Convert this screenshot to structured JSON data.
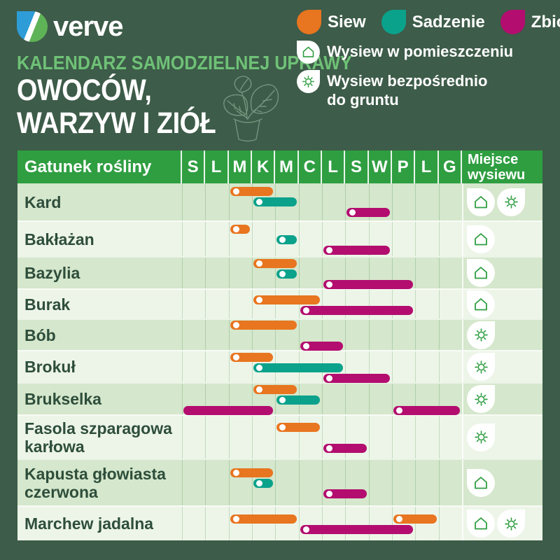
{
  "brand": {
    "name": "verve"
  },
  "header": {
    "eyebrow": "KALENDARZ SAMODZIELNEJ UPRAWY",
    "title_line1": "OWOCÓW,",
    "title_line2": "WARZYW I ZIÓŁ"
  },
  "legend": {
    "items": [
      {
        "key": "siew",
        "label": "Siew",
        "color": "#e8751f"
      },
      {
        "key": "sadzenie",
        "label": "Sadzenie",
        "color": "#0ba28c"
      },
      {
        "key": "zbior",
        "label": "Zbiór",
        "color": "#b30d6f"
      }
    ],
    "indoor_label": "Wysiew w pomieszczeniu",
    "direct_line1": "Wysiew bezpośrednio",
    "direct_line2": "do gruntu"
  },
  "table": {
    "species_header": "Gatunek rośliny",
    "place_line1": "Miejsce",
    "place_line2": "wysiewu"
  },
  "chart_data": {
    "type": "bar",
    "subtype": "gantt-calendar",
    "months": [
      "S",
      "L",
      "M",
      "K",
      "M",
      "C",
      "L",
      "S",
      "W",
      "P",
      "L",
      "G"
    ],
    "colors": {
      "siew": "#e8751f",
      "sadzenie": "#0ba28c",
      "zbior": "#b30d6f"
    },
    "series_legend": [
      "Siew",
      "Sadzenie",
      "Zbiór"
    ],
    "rows": [
      {
        "species": "Kard",
        "h": 53,
        "lanes": 3,
        "place": [
          "indoor",
          "direct"
        ],
        "bars": [
          {
            "type": "siew",
            "start": 3,
            "end": 4,
            "lane": 0,
            "dot": true
          },
          {
            "type": "sadzenie",
            "start": 4,
            "end": 5,
            "lane": 1,
            "dot": true
          },
          {
            "type": "zbior",
            "start": 8,
            "end": 9,
            "lane": 2,
            "dot": true
          }
        ]
      },
      {
        "species": "Bakłażan",
        "h": 51,
        "lanes": 3,
        "place": [
          "indoor"
        ],
        "bars": [
          {
            "type": "siew",
            "start": 3,
            "end": 3,
            "lane": 0,
            "dot": true
          },
          {
            "type": "sadzenie",
            "start": 5,
            "end": 5,
            "lane": 1,
            "dot": true
          },
          {
            "type": "zbior",
            "start": 7,
            "end": 9,
            "lane": 2,
            "dot": true
          }
        ]
      },
      {
        "species": "Bazylia",
        "h": 46,
        "lanes": 3,
        "place": [
          "indoor"
        ],
        "bars": [
          {
            "type": "siew",
            "start": 4,
            "end": 5,
            "lane": 0,
            "dot": true
          },
          {
            "type": "sadzenie",
            "start": 5,
            "end": 5,
            "lane": 1,
            "dot": true
          },
          {
            "type": "zbior",
            "start": 7,
            "end": 10,
            "lane": 2,
            "dot": true
          }
        ]
      },
      {
        "species": "Burak",
        "h": 43,
        "lanes": 2,
        "place": [
          "indoor"
        ],
        "bars": [
          {
            "type": "siew",
            "start": 4,
            "end": 6,
            "lane": 0,
            "dot": true
          },
          {
            "type": "zbior",
            "start": 6,
            "end": 10,
            "lane": 1,
            "dot": true
          }
        ]
      },
      {
        "species": "Bób",
        "h": 45,
        "lanes": 3,
        "place": [
          "direct"
        ],
        "bars": [
          {
            "type": "siew",
            "start": 3,
            "end": 5,
            "lane": 0,
            "dot": true
          },
          {
            "type": "zbior",
            "start": 6,
            "end": 7,
            "lane": 2,
            "dot": true
          }
        ]
      },
      {
        "species": "Brokuł",
        "h": 46,
        "lanes": 3,
        "place": [
          "direct"
        ],
        "bars": [
          {
            "type": "siew",
            "start": 3,
            "end": 4,
            "lane": 0,
            "dot": true
          },
          {
            "type": "sadzenie",
            "start": 4,
            "end": 7,
            "lane": 1,
            "dot": true
          },
          {
            "type": "zbior",
            "start": 7,
            "end": 9,
            "lane": 2,
            "dot": true
          }
        ]
      },
      {
        "species": "Brukselka",
        "h": 46,
        "lanes": 3,
        "place": [
          "direct"
        ],
        "bars": [
          {
            "type": "siew",
            "start": 4,
            "end": 5,
            "lane": 0,
            "dot": true
          },
          {
            "type": "sadzenie",
            "start": 5,
            "end": 6,
            "lane": 1,
            "dot": true
          },
          {
            "type": "zbior",
            "start": 1,
            "end": 4,
            "lane": 2,
            "dot": false
          },
          {
            "type": "zbior",
            "start": 10,
            "end": 12,
            "lane": 2,
            "dot": true
          }
        ]
      },
      {
        "species": "Fasola szparagowa karłowa",
        "h": 63,
        "lanes": 3,
        "place": [
          "direct"
        ],
        "bars": [
          {
            "type": "siew",
            "start": 5,
            "end": 6,
            "lane": 0,
            "dot": true
          },
          {
            "type": "zbior",
            "start": 7,
            "end": 8,
            "lane": 2,
            "dot": true
          }
        ]
      },
      {
        "species": "Kapusta głowiasta czerwona",
        "h": 67,
        "lanes": 3,
        "place": [
          "indoor"
        ],
        "bars": [
          {
            "type": "siew",
            "start": 3,
            "end": 4,
            "lane": 0,
            "dot": true
          },
          {
            "type": "sadzenie",
            "start": 4,
            "end": 4,
            "lane": 1,
            "dot": true
          },
          {
            "type": "zbior",
            "start": 7,
            "end": 8,
            "lane": 2,
            "dot": true
          }
        ]
      },
      {
        "species": "Marchew jadalna",
        "h": 50,
        "lanes": 2,
        "place": [
          "indoor",
          "direct"
        ],
        "bars": [
          {
            "type": "siew",
            "start": 3,
            "end": 5,
            "lane": 0,
            "dot": true
          },
          {
            "type": "siew",
            "start": 10,
            "end": 11,
            "lane": 0,
            "dot": true
          },
          {
            "type": "zbior",
            "start": 6,
            "end": 10,
            "lane": 1,
            "dot": true
          }
        ]
      }
    ]
  }
}
